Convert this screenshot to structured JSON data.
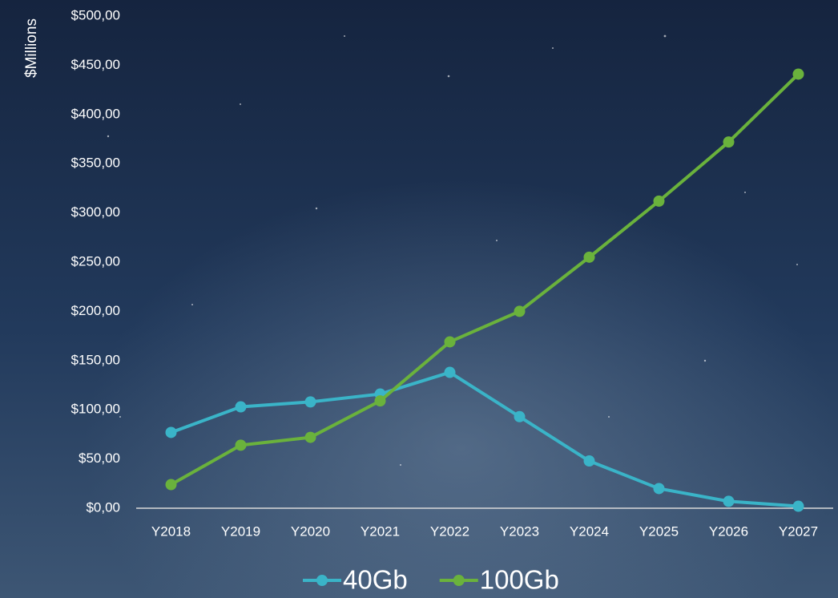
{
  "chart_data": {
    "type": "line",
    "y_label": "$Millions",
    "categories": [
      "Y2018",
      "Y2019",
      "Y2020",
      "Y2021",
      "Y2022",
      "Y2023",
      "Y2024",
      "Y2025",
      "Y2026",
      "Y2027"
    ],
    "series": [
      {
        "name": "40Gb",
        "color": "#3ab4c8",
        "values": [
          77,
          103,
          108,
          116,
          138,
          93,
          48,
          20,
          7,
          2
        ]
      },
      {
        "name": "100Gb",
        "color": "#6ab23c",
        "values": [
          24,
          64,
          72,
          109,
          169,
          200,
          255,
          312,
          372,
          441
        ]
      }
    ],
    "ylim": [
      0,
      500
    ],
    "yticks": [
      {
        "value": 0,
        "label": "$0,00"
      },
      {
        "value": 50,
        "label": "$50,00"
      },
      {
        "value": 100,
        "label": "$100,00"
      },
      {
        "value": 150,
        "label": "$150,00"
      },
      {
        "value": 200,
        "label": "$200,00"
      },
      {
        "value": 250,
        "label": "$250,00"
      },
      {
        "value": 300,
        "label": "$300,00"
      },
      {
        "value": 350,
        "label": "$350,00"
      },
      {
        "value": 400,
        "label": "$400,00"
      },
      {
        "value": 450,
        "label": "$450,00"
      },
      {
        "value": 500,
        "label": "$500,00"
      }
    ],
    "grid": false,
    "legend": "bottom"
  }
}
